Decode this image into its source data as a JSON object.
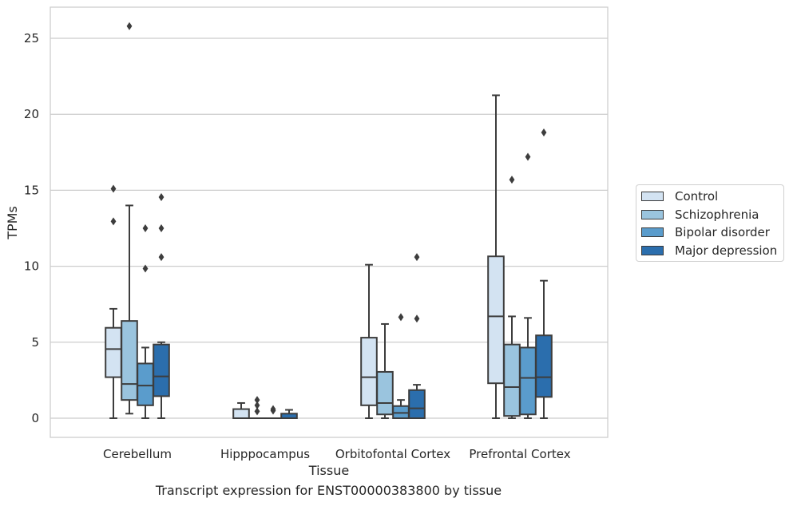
{
  "chart_data": {
    "type": "box",
    "title": "",
    "caption": "Transcript expression for ENST00000383800 by tissue",
    "xlabel": "Tissue",
    "ylabel": "TPMs",
    "ylim": [
      -1.2,
      26.8
    ],
    "yticks": [
      "0",
      "5",
      "10",
      "15",
      "20",
      "25"
    ],
    "ytick_values": [
      0,
      5,
      10,
      15,
      20,
      25
    ],
    "grid": "horizontal",
    "legend_position": "right",
    "categories": [
      "Cerebellum",
      "Hipppocampus",
      "Orbitofontal Cortex",
      "Prefrontal Cortex"
    ],
    "series": [
      {
        "name": "Control",
        "color": "#d3e3f2",
        "boxes": [
          {
            "q1": 2.7,
            "median": 4.55,
            "q3": 5.95,
            "whislo": 0,
            "whishi": 7.2,
            "fliers": [
              15.1,
              12.95
            ]
          },
          {
            "q1": 0,
            "median": 0,
            "q3": 0.6,
            "whislo": 0,
            "whishi": 1.0,
            "fliers": []
          },
          {
            "q1": 0.85,
            "median": 2.7,
            "q3": 5.3,
            "whislo": 0,
            "whishi": 10.1,
            "fliers": []
          },
          {
            "q1": 2.3,
            "median": 6.7,
            "q3": 10.65,
            "whislo": 0,
            "whishi": 21.25,
            "fliers": []
          }
        ]
      },
      {
        "name": "Schizophrenia",
        "color": "#9ac4de",
        "boxes": [
          {
            "q1": 1.2,
            "median": 2.25,
            "q3": 6.4,
            "whislo": 0.3,
            "whishi": 14.0,
            "fliers": [
              25.8
            ]
          },
          {
            "q1": 0,
            "median": 0,
            "q3": 0,
            "whislo": 0,
            "whishi": 0,
            "fliers": [
              1.2,
              0.85,
              0.45
            ]
          },
          {
            "q1": 0.25,
            "median": 1.0,
            "q3": 3.05,
            "whislo": 0,
            "whishi": 6.2,
            "fliers": []
          },
          {
            "q1": 0.15,
            "median": 2.05,
            "q3": 4.85,
            "whislo": 0,
            "whishi": 6.7,
            "fliers": [
              15.7
            ]
          }
        ]
      },
      {
        "name": "Bipolar disorder",
        "color": "#5a9ccc",
        "boxes": [
          {
            "q1": 0.85,
            "median": 2.15,
            "q3": 3.6,
            "whislo": 0,
            "whishi": 4.65,
            "fliers": [
              12.5,
              9.85
            ]
          },
          {
            "q1": 0,
            "median": 0,
            "q3": 0,
            "whislo": 0,
            "whishi": 0,
            "fliers": [
              0.6,
              0.5
            ]
          },
          {
            "q1": 0,
            "median": 0.35,
            "q3": 0.8,
            "whislo": 0,
            "whishi": 1.2,
            "fliers": [
              6.65
            ]
          },
          {
            "q1": 0.25,
            "median": 2.65,
            "q3": 4.65,
            "whislo": 0,
            "whishi": 6.6,
            "fliers": [
              17.2
            ]
          }
        ]
      },
      {
        "name": "Major depression",
        "color": "#2b6ead",
        "boxes": [
          {
            "q1": 1.45,
            "median": 2.75,
            "q3": 4.85,
            "whislo": 0,
            "whishi": 5.0,
            "fliers": [
              14.55,
              12.5,
              10.6
            ]
          },
          {
            "q1": 0,
            "median": 0,
            "q3": 0.3,
            "whislo": 0,
            "whishi": 0.55,
            "fliers": []
          },
          {
            "q1": 0,
            "median": 0.65,
            "q3": 1.85,
            "whislo": 0,
            "whishi": 2.2,
            "fliers": [
              10.6,
              6.55
            ]
          },
          {
            "q1": 1.4,
            "median": 2.7,
            "q3": 5.45,
            "whislo": 0,
            "whishi": 9.05,
            "fliers": [
              18.8
            ]
          }
        ]
      }
    ]
  }
}
